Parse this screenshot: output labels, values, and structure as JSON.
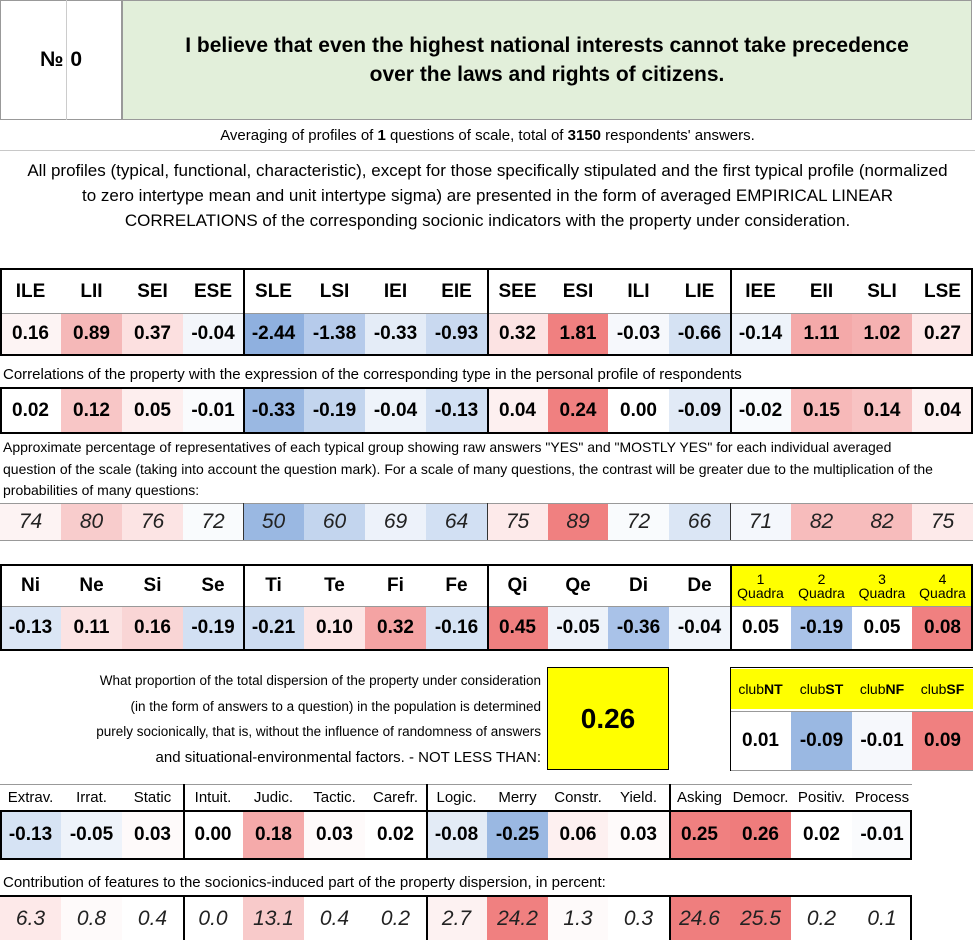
{
  "header": {
    "number_label": "№",
    "number_value": "0",
    "title": "I believe that even the highest national interests cannot take precedence over the laws and rights of citizens."
  },
  "averaging": {
    "prefix": "Averaging of profiles of ",
    "questions": "1",
    "middle": " questions of scale, total of ",
    "respondents": "3150",
    "suffix": " respondents' answers."
  },
  "description": "All profiles (typical, functional, characteristic), except for those specifically stipulated and the first typical profile (normalized to zero intertype mean and unit intertype sigma) are presented in the form of averaged EMPIRICAL LINEAR CORRELATIONS of the corresponding socionic indicators with the property under consideration.",
  "types": {
    "headers": [
      "ILE",
      "LII",
      "SEI",
      "ESE",
      "SLE",
      "LSI",
      "IEI",
      "EIE",
      "SEE",
      "ESI",
      "ILI",
      "LIE",
      "IEE",
      "EII",
      "SLI",
      "LSE"
    ],
    "values": [
      "0.16",
      "0.89",
      "0.37",
      "-0.04",
      "-2.44",
      "-1.38",
      "-0.33",
      "-0.93",
      "0.32",
      "1.81",
      "-0.03",
      "-0.66",
      "-0.14",
      "1.11",
      "1.02",
      "0.27"
    ],
    "colors": [
      "#fdf4f4",
      "#f5b8b8",
      "#fce0e0",
      "#f3f6fb",
      "#8fb0df",
      "#b6cbeb",
      "#e4ecf7",
      "#c9d9f0",
      "#fce3e3",
      "#f08080",
      "#f6f8fc",
      "#d5e2f3",
      "#eef3fa",
      "#f4a9a9",
      "#f5b1b1",
      "#fde8e8"
    ]
  },
  "correlations_caption": "Correlations of the property with the expression of the corresponding type in the personal profile of respondents",
  "correlations": {
    "values": [
      "0.02",
      "0.12",
      "0.05",
      "-0.01",
      "-0.33",
      "-0.19",
      "-0.04",
      "-0.13",
      "0.04",
      "0.24",
      "0.00",
      "-0.09",
      "-0.02",
      "0.15",
      "0.14",
      "0.04"
    ],
    "colors": [
      "#ffffff",
      "#f8c6c6",
      "#fdeeee",
      "#fafbfd",
      "#9ab8e2",
      "#c3d5ee",
      "#eef3fa",
      "#d2e0f3",
      "#fdf0f0",
      "#f08080",
      "#ffffff",
      "#e1eaf6",
      "#f8fafd",
      "#f7b9b9",
      "#f8c3c3",
      "#fdf0f0"
    ]
  },
  "percentage_caption": "Approximate percentage of representatives of each typical group showing raw answers \"YES\" and \"MOSTLY YES\" for each individual averaged question of the scale (taking into account the question mark). For a scale of many questions, the contrast will be greater due to the multiplication of the probabilities of many questions:",
  "percentages": {
    "values": [
      "74",
      "80",
      "76",
      "72",
      "50",
      "60",
      "69",
      "64",
      "75",
      "89",
      "72",
      "66",
      "71",
      "82",
      "82",
      "75"
    ],
    "colors": [
      "#fdf3f3",
      "#f8cccc",
      "#fce4e4",
      "#f9fbfd",
      "#9ab8e2",
      "#c3d5ee",
      "#edf2fa",
      "#d2e0f3",
      "#fdeaea",
      "#f08080",
      "#f9fbfd",
      "#dbe6f5",
      "#f4f7fc",
      "#f7bcbc",
      "#f7bcbc",
      "#fdeaea"
    ]
  },
  "functions": {
    "headers": [
      "Ni",
      "Ne",
      "Si",
      "Se",
      "Ti",
      "Te",
      "Fi",
      "Fe",
      "Qi",
      "Qe",
      "Di",
      "De"
    ],
    "values": [
      "-0.13",
      "0.11",
      "0.16",
      "-0.19",
      "-0.21",
      "0.10",
      "0.32",
      "-0.16",
      "0.45",
      "-0.05",
      "-0.36",
      "-0.04"
    ],
    "colors": [
      "#dbe6f5",
      "#fbe3e3",
      "#f9d5d5",
      "#d2e0f3",
      "#cddcf1",
      "#fce6e6",
      "#f4a3a3",
      "#d6e3f4",
      "#ef7f7f",
      "#eef3fa",
      "#a9c2e8",
      "#f1f5fb"
    ]
  },
  "quadras": {
    "number_labels": [
      "1",
      "2",
      "3",
      "4"
    ],
    "word": "Quadra",
    "values": [
      "0.05",
      "-0.19",
      "0.05",
      "0.08"
    ],
    "colors": [
      "#ffffff",
      "#a9c2e8",
      "#ffffff",
      "#f08080"
    ]
  },
  "dispersion": {
    "text_lines": [
      "What proportion of the total dispersion of the property under consideration",
      "(in the form of answers to a question) in the population is determined",
      "purely socionically, that is, without the influence of randomness of answers"
    ],
    "last_line": "and situational-environmental factors. - NOT LESS THAN:",
    "value": "0.26"
  },
  "clubs": {
    "headers": [
      "NT",
      "ST",
      "NF",
      "SF"
    ],
    "prefix": "club",
    "values": [
      "0.01",
      "-0.09",
      "-0.01",
      "0.09"
    ],
    "colors": [
      "#ffffff",
      "#9ab8e2",
      "#f6f8fc",
      "#f08080"
    ]
  },
  "traits": {
    "headers": [
      "Extrav.",
      "Irrat.",
      "Static",
      "Intuit.",
      "Judic.",
      "Tactic.",
      "Carefr.",
      "Logic.",
      "Merry",
      "Constr.",
      "Yield.",
      "Asking",
      "Democr.",
      "Positiv.",
      "Process"
    ],
    "values": [
      "-0.13",
      "-0.05",
      "0.03",
      "0.00",
      "0.18",
      "0.03",
      "0.02",
      "-0.08",
      "-0.25",
      "0.06",
      "0.03",
      "0.25",
      "0.26",
      "0.02",
      "-0.01"
    ],
    "colors": [
      "#d6e3f4",
      "#eef3fa",
      "#fefafa",
      "#ffffff",
      "#f5aaaa",
      "#fefafa",
      "#ffffff",
      "#e3ebf6",
      "#9ab8e2",
      "#fdf0f0",
      "#fefafa",
      "#f08080",
      "#ef7c7c",
      "#ffffff",
      "#fafbfd"
    ]
  },
  "contribution_caption": "Contribution of features to the socionics-induced part of the property dispersion, in percent:",
  "contributions": {
    "values": [
      "6.3",
      "0.8",
      "0.4",
      "0.0",
      "13.1",
      "0.4",
      "0.2",
      "2.7",
      "24.2",
      "1.3",
      "0.3",
      "24.6",
      "25.5",
      "0.2",
      "0.1"
    ],
    "colors": [
      "#fde9e9",
      "#fefafa",
      "#ffffff",
      "#ffffff",
      "#f8caca",
      "#ffffff",
      "#ffffff",
      "#fdf2f2",
      "#f08080",
      "#fefafa",
      "#ffffff",
      "#ef7e7e",
      "#ef7c7c",
      "#ffffff",
      "#ffffff"
    ]
  }
}
